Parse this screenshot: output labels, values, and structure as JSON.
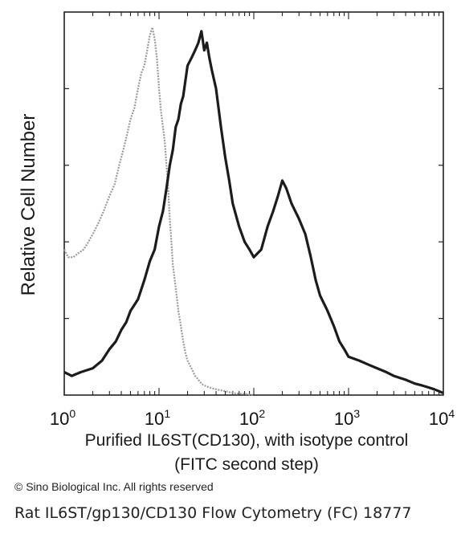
{
  "chart_data": {
    "type": "line",
    "xscale": "log",
    "xlim": [
      1,
      10000
    ],
    "ylim": [
      0,
      100
    ],
    "grid": false,
    "ylabel": "Relative Cell Number",
    "xlabel_line1": "Purified IL6ST(CD130), with isotype control",
    "xlabel_line2": "(FITC second step)",
    "xticks": [
      {
        "value": 1,
        "base": "10",
        "exp": "0"
      },
      {
        "value": 10,
        "base": "10",
        "exp": "1"
      },
      {
        "value": 100,
        "base": "10",
        "exp": "2"
      },
      {
        "value": 1000,
        "base": "10",
        "exp": "3"
      },
      {
        "value": 10000,
        "base": "10",
        "exp": "4"
      }
    ],
    "series": [
      {
        "color": "#9a9a9a",
        "x": [
          1,
          1.1,
          1.25,
          1.4,
          1.6,
          1.8,
          2,
          2.3,
          2.6,
          3,
          3.4,
          3.8,
          4.2,
          4.6,
          5,
          5.5,
          6,
          6.5,
          7,
          7.5,
          8,
          8.5,
          9,
          9.5,
          10,
          10.5,
          11,
          11.5,
          12,
          12.5,
          13,
          13.5,
          14,
          15,
          16,
          17,
          18,
          19,
          20,
          22,
          24,
          26,
          28,
          30,
          34,
          40,
          50,
          60,
          80,
          100
        ],
        "y": [
          38,
          36,
          36,
          37,
          38,
          40,
          42,
          45,
          48,
          52,
          55,
          60,
          64,
          68,
          72,
          75,
          80,
          84,
          86,
          90,
          94,
          96,
          93,
          88,
          80,
          74,
          70,
          66,
          60,
          54,
          46,
          40,
          34,
          28,
          22,
          18,
          14,
          11,
          9,
          7,
          5,
          4,
          3,
          2.5,
          2,
          1.5,
          1,
          0.5,
          0.3,
          0
        ]
      },
      {
        "color": "#1c1c1c",
        "x": [
          1,
          1.2,
          1.5,
          2,
          2.5,
          3,
          3.5,
          4,
          4.5,
          5,
          6,
          7,
          8,
          9,
          10,
          11,
          12,
          13,
          14,
          15,
          16,
          17,
          18,
          20,
          22,
          24,
          26,
          28,
          30,
          32,
          34,
          36,
          40,
          45,
          50,
          55,
          60,
          70,
          80,
          90,
          100,
          120,
          140,
          160,
          180,
          200,
          220,
          250,
          300,
          350,
          400,
          450,
          500,
          600,
          700,
          800,
          900,
          1000,
          1300,
          1600,
          2000,
          2500,
          3000,
          4000,
          5000,
          6000,
          7000,
          8000,
          9000,
          10000
        ],
        "y": [
          6,
          5,
          6,
          7,
          9,
          12,
          14,
          17,
          19,
          22,
          25,
          30,
          35,
          38,
          44,
          48,
          54,
          60,
          64,
          70,
          72,
          76,
          78,
          86,
          88,
          90,
          92,
          95,
          90,
          92,
          88,
          85,
          80,
          70,
          62,
          56,
          50,
          44,
          40,
          38,
          36,
          38,
          44,
          48,
          52,
          56,
          54,
          50,
          46,
          42,
          36,
          30,
          26,
          22,
          18,
          14,
          12,
          10,
          9,
          8,
          7,
          6,
          5,
          4,
          3,
          2.5,
          2,
          1.5,
          1,
          0.5
        ]
      }
    ]
  },
  "copyright": "© Sino Biological Inc. All rights reserved",
  "caption": "Rat IL6ST/gp130/CD130 Flow Cytometry (FC) 18777"
}
